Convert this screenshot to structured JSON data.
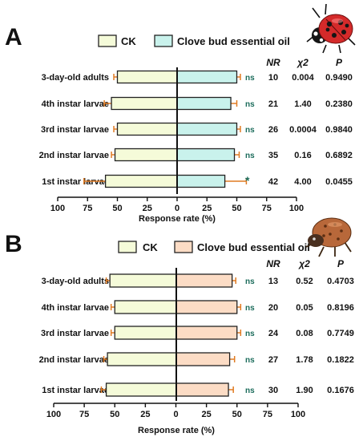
{
  "chart_data": [
    {
      "type": "bar",
      "panel_label": "A",
      "orientation": "horizontal-diverging",
      "legend": [
        "CK",
        "Clove bud essential oil"
      ],
      "categories": [
        "3-day-old adults",
        "4th instar larvae",
        "3rd instar larvae",
        "2nd instar larvae",
        "1st instar larvae"
      ],
      "series": [
        {
          "name": "CK",
          "values": [
            50,
            55,
            50,
            52,
            60
          ],
          "errors": [
            3,
            6,
            3,
            3,
            18
          ]
        },
        {
          "name": "Clove bud essential oil",
          "values": [
            50,
            45,
            50,
            48,
            40
          ],
          "errors": [
            3,
            5,
            3,
            4,
            18
          ]
        }
      ],
      "significance": [
        "ns",
        "ns",
        "ns",
        "ns",
        "*"
      ],
      "stats_headers": [
        "NR",
        "χ2",
        "P"
      ],
      "stats_rows": [
        [
          "10",
          "0.004",
          "0.9490"
        ],
        [
          "21",
          "1.40",
          "0.2380"
        ],
        [
          "26",
          "0.0004",
          "0.9840"
        ],
        [
          "35",
          "0.16",
          "0.6892"
        ],
        [
          "42",
          "4.00",
          "0.0455"
        ]
      ],
      "xlabel": "Response rate (%)",
      "xticks": [
        "100",
        "75",
        "50",
        "25",
        "0",
        "25",
        "50",
        "75",
        "100"
      ],
      "xlim": [
        -100,
        100
      ],
      "colors": {
        "CK": "#f5fbd9",
        "oil": "#c9f2ec",
        "error": "#e07b22",
        "sig": "#1a6b5a"
      }
    },
    {
      "type": "bar",
      "panel_label": "B",
      "orientation": "horizontal-diverging",
      "legend": [
        "CK",
        "Clove bud essential oil"
      ],
      "categories": [
        "3-day-old adults",
        "4th instar larvae",
        "3rd instar larvae",
        "2nd instar larvae",
        "1st instar larvae"
      ],
      "series": [
        {
          "name": "CK",
          "values": [
            54,
            50,
            50,
            56,
            57
          ],
          "errors": [
            3,
            3,
            3,
            3,
            4
          ]
        },
        {
          "name": "Clove bud essential oil",
          "values": [
            46,
            50,
            50,
            44,
            43
          ],
          "errors": [
            3,
            3,
            3,
            4,
            4
          ]
        }
      ],
      "significance": [
        "ns",
        "ns",
        "ns",
        "ns",
        "ns"
      ],
      "stats_headers": [
        "NR",
        "χ2",
        "P"
      ],
      "stats_rows": [
        [
          "13",
          "0.52",
          "0.4703"
        ],
        [
          "20",
          "0.05",
          "0.8196"
        ],
        [
          "24",
          "0.08",
          "0.7749"
        ],
        [
          "27",
          "1.78",
          "0.1822"
        ],
        [
          "30",
          "1.90",
          "0.1676"
        ]
      ],
      "xlabel": "Response rate (%)",
      "xticks": [
        "100",
        "75",
        "50",
        "25",
        "0",
        "25",
        "50",
        "75",
        "100"
      ],
      "xlim": [
        -100,
        100
      ],
      "colors": {
        "CK": "#f5fbd9",
        "oil": "#fcdcc5",
        "error": "#e07b22",
        "sig": "#1a6b5a"
      }
    }
  ],
  "icons": [
    "ladybug-adult-icon",
    "ladybug-larva-icon"
  ]
}
